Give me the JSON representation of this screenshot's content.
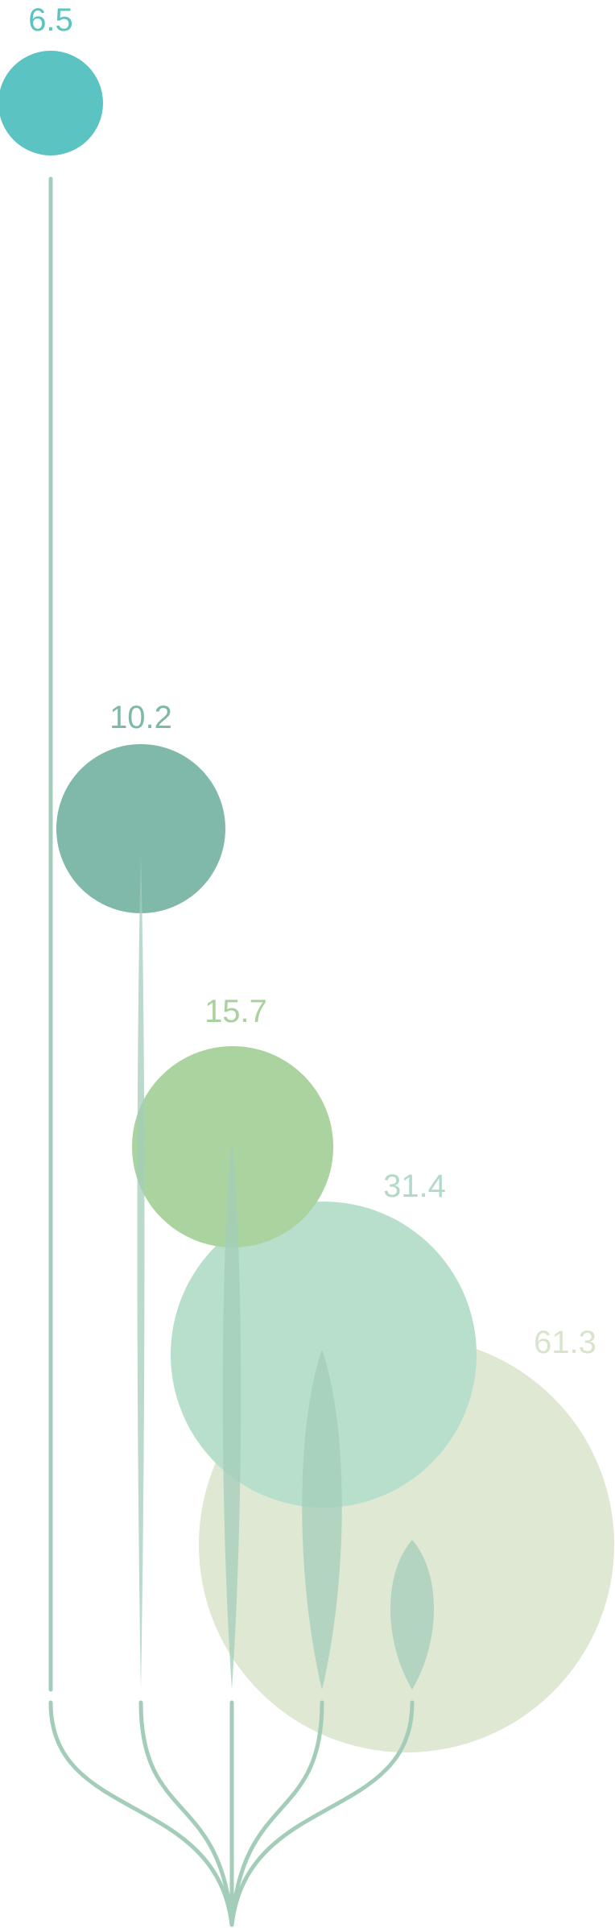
{
  "chart_data": {
    "type": "bubble",
    "values": [
      6.5,
      10.2,
      15.7,
      31.4,
      61.3
    ],
    "labels": [
      "6.5",
      "10.2",
      "15.7",
      "31.4",
      "61.3"
    ],
    "colors": [
      "#5bc3c2",
      "#80b9aa",
      "#abd3a0",
      "#b8dfcc",
      "#dfe8d3"
    ],
    "label_colors": [
      "#5bc3c2",
      "#7fb8a8",
      "#a9d19e",
      "#b3dac8",
      "#d9e4cc"
    ],
    "stem_color": "#a3cdb9",
    "title": "",
    "xlabel": "",
    "ylabel": ""
  }
}
